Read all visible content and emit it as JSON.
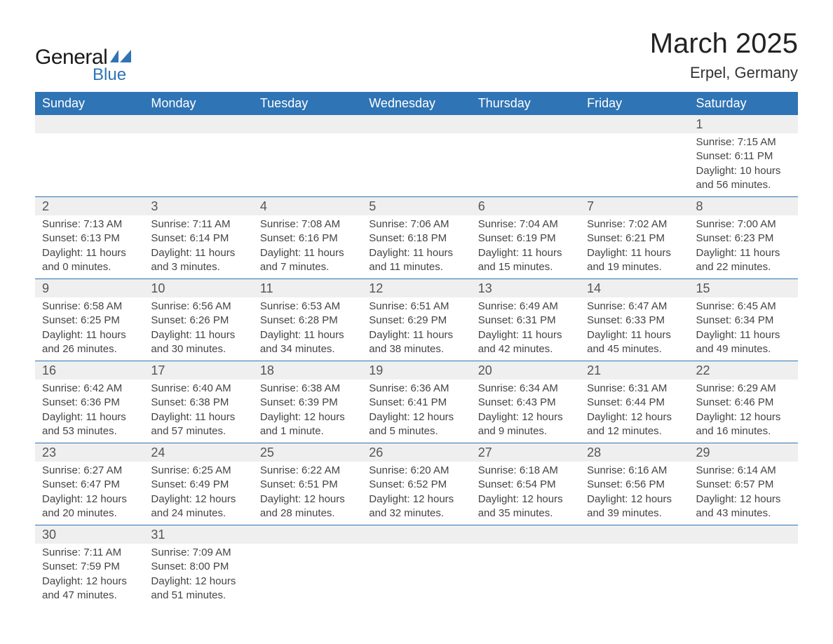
{
  "logo": {
    "text_general": "General",
    "text_blue": "Blue",
    "flag_color": "#2f74b5"
  },
  "title": "March 2025",
  "location": "Erpel, Germany",
  "colors": {
    "header_bg": "#2f74b5",
    "header_text": "#ffffff",
    "daynum_bg": "#efefef",
    "row_divider": "#2f74b5",
    "body_text": "#444444",
    "page_bg": "#ffffff"
  },
  "fonts": {
    "title_size": 40,
    "location_size": 22,
    "th_size": 18,
    "daynum_size": 18,
    "detail_size": 15
  },
  "day_headers": [
    "Sunday",
    "Monday",
    "Tuesday",
    "Wednesday",
    "Thursday",
    "Friday",
    "Saturday"
  ],
  "weeks": [
    [
      null,
      null,
      null,
      null,
      null,
      null,
      {
        "n": "1",
        "sr": "Sunrise: 7:15 AM",
        "ss": "Sunset: 6:11 PM",
        "d1": "Daylight: 10 hours",
        "d2": "and 56 minutes."
      }
    ],
    [
      {
        "n": "2",
        "sr": "Sunrise: 7:13 AM",
        "ss": "Sunset: 6:13 PM",
        "d1": "Daylight: 11 hours",
        "d2": "and 0 minutes."
      },
      {
        "n": "3",
        "sr": "Sunrise: 7:11 AM",
        "ss": "Sunset: 6:14 PM",
        "d1": "Daylight: 11 hours",
        "d2": "and 3 minutes."
      },
      {
        "n": "4",
        "sr": "Sunrise: 7:08 AM",
        "ss": "Sunset: 6:16 PM",
        "d1": "Daylight: 11 hours",
        "d2": "and 7 minutes."
      },
      {
        "n": "5",
        "sr": "Sunrise: 7:06 AM",
        "ss": "Sunset: 6:18 PM",
        "d1": "Daylight: 11 hours",
        "d2": "and 11 minutes."
      },
      {
        "n": "6",
        "sr": "Sunrise: 7:04 AM",
        "ss": "Sunset: 6:19 PM",
        "d1": "Daylight: 11 hours",
        "d2": "and 15 minutes."
      },
      {
        "n": "7",
        "sr": "Sunrise: 7:02 AM",
        "ss": "Sunset: 6:21 PM",
        "d1": "Daylight: 11 hours",
        "d2": "and 19 minutes."
      },
      {
        "n": "8",
        "sr": "Sunrise: 7:00 AM",
        "ss": "Sunset: 6:23 PM",
        "d1": "Daylight: 11 hours",
        "d2": "and 22 minutes."
      }
    ],
    [
      {
        "n": "9",
        "sr": "Sunrise: 6:58 AM",
        "ss": "Sunset: 6:25 PM",
        "d1": "Daylight: 11 hours",
        "d2": "and 26 minutes."
      },
      {
        "n": "10",
        "sr": "Sunrise: 6:56 AM",
        "ss": "Sunset: 6:26 PM",
        "d1": "Daylight: 11 hours",
        "d2": "and 30 minutes."
      },
      {
        "n": "11",
        "sr": "Sunrise: 6:53 AM",
        "ss": "Sunset: 6:28 PM",
        "d1": "Daylight: 11 hours",
        "d2": "and 34 minutes."
      },
      {
        "n": "12",
        "sr": "Sunrise: 6:51 AM",
        "ss": "Sunset: 6:29 PM",
        "d1": "Daylight: 11 hours",
        "d2": "and 38 minutes."
      },
      {
        "n": "13",
        "sr": "Sunrise: 6:49 AM",
        "ss": "Sunset: 6:31 PM",
        "d1": "Daylight: 11 hours",
        "d2": "and 42 minutes."
      },
      {
        "n": "14",
        "sr": "Sunrise: 6:47 AM",
        "ss": "Sunset: 6:33 PM",
        "d1": "Daylight: 11 hours",
        "d2": "and 45 minutes."
      },
      {
        "n": "15",
        "sr": "Sunrise: 6:45 AM",
        "ss": "Sunset: 6:34 PM",
        "d1": "Daylight: 11 hours",
        "d2": "and 49 minutes."
      }
    ],
    [
      {
        "n": "16",
        "sr": "Sunrise: 6:42 AM",
        "ss": "Sunset: 6:36 PM",
        "d1": "Daylight: 11 hours",
        "d2": "and 53 minutes."
      },
      {
        "n": "17",
        "sr": "Sunrise: 6:40 AM",
        "ss": "Sunset: 6:38 PM",
        "d1": "Daylight: 11 hours",
        "d2": "and 57 minutes."
      },
      {
        "n": "18",
        "sr": "Sunrise: 6:38 AM",
        "ss": "Sunset: 6:39 PM",
        "d1": "Daylight: 12 hours",
        "d2": "and 1 minute."
      },
      {
        "n": "19",
        "sr": "Sunrise: 6:36 AM",
        "ss": "Sunset: 6:41 PM",
        "d1": "Daylight: 12 hours",
        "d2": "and 5 minutes."
      },
      {
        "n": "20",
        "sr": "Sunrise: 6:34 AM",
        "ss": "Sunset: 6:43 PM",
        "d1": "Daylight: 12 hours",
        "d2": "and 9 minutes."
      },
      {
        "n": "21",
        "sr": "Sunrise: 6:31 AM",
        "ss": "Sunset: 6:44 PM",
        "d1": "Daylight: 12 hours",
        "d2": "and 12 minutes."
      },
      {
        "n": "22",
        "sr": "Sunrise: 6:29 AM",
        "ss": "Sunset: 6:46 PM",
        "d1": "Daylight: 12 hours",
        "d2": "and 16 minutes."
      }
    ],
    [
      {
        "n": "23",
        "sr": "Sunrise: 6:27 AM",
        "ss": "Sunset: 6:47 PM",
        "d1": "Daylight: 12 hours",
        "d2": "and 20 minutes."
      },
      {
        "n": "24",
        "sr": "Sunrise: 6:25 AM",
        "ss": "Sunset: 6:49 PM",
        "d1": "Daylight: 12 hours",
        "d2": "and 24 minutes."
      },
      {
        "n": "25",
        "sr": "Sunrise: 6:22 AM",
        "ss": "Sunset: 6:51 PM",
        "d1": "Daylight: 12 hours",
        "d2": "and 28 minutes."
      },
      {
        "n": "26",
        "sr": "Sunrise: 6:20 AM",
        "ss": "Sunset: 6:52 PM",
        "d1": "Daylight: 12 hours",
        "d2": "and 32 minutes."
      },
      {
        "n": "27",
        "sr": "Sunrise: 6:18 AM",
        "ss": "Sunset: 6:54 PM",
        "d1": "Daylight: 12 hours",
        "d2": "and 35 minutes."
      },
      {
        "n": "28",
        "sr": "Sunrise: 6:16 AM",
        "ss": "Sunset: 6:56 PM",
        "d1": "Daylight: 12 hours",
        "d2": "and 39 minutes."
      },
      {
        "n": "29",
        "sr": "Sunrise: 6:14 AM",
        "ss": "Sunset: 6:57 PM",
        "d1": "Daylight: 12 hours",
        "d2": "and 43 minutes."
      }
    ],
    [
      {
        "n": "30",
        "sr": "Sunrise: 7:11 AM",
        "ss": "Sunset: 7:59 PM",
        "d1": "Daylight: 12 hours",
        "d2": "and 47 minutes."
      },
      {
        "n": "31",
        "sr": "Sunrise: 7:09 AM",
        "ss": "Sunset: 8:00 PM",
        "d1": "Daylight: 12 hours",
        "d2": "and 51 minutes."
      },
      null,
      null,
      null,
      null,
      null
    ]
  ]
}
